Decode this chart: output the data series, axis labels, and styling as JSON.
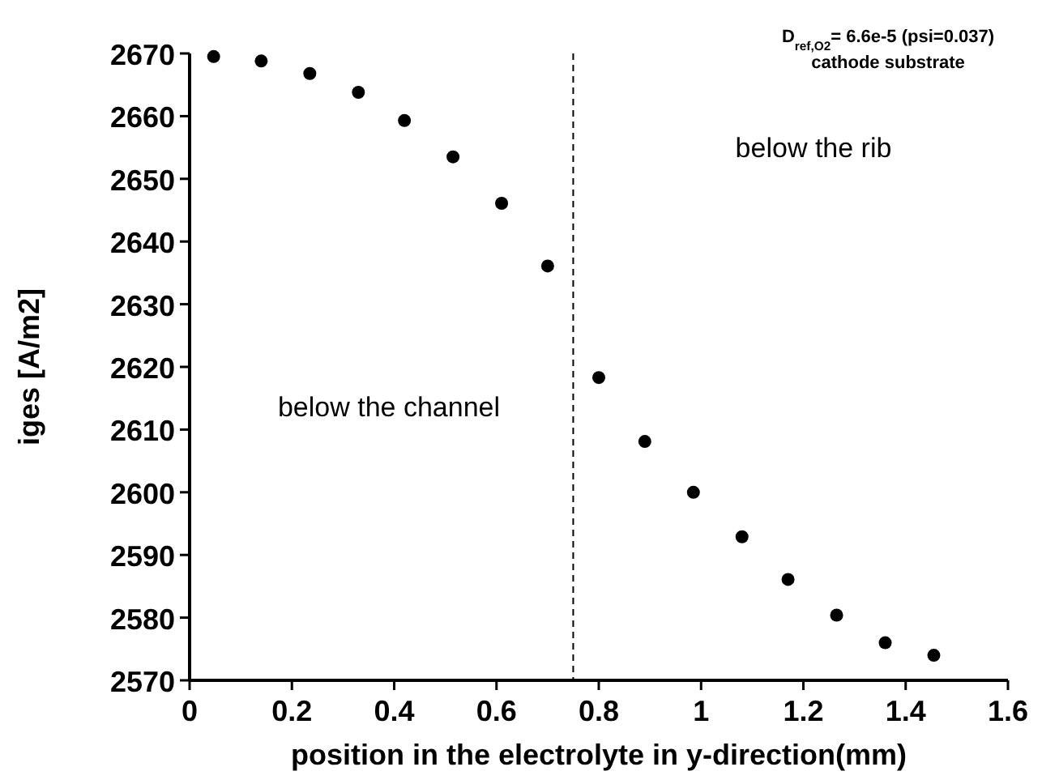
{
  "chart_data": {
    "type": "scatter",
    "xlabel": "position in the electrolyte in y-direction(mm)",
    "ylabel": "iges [A/m2]",
    "annotations": [
      "D$_{ref,O2}$= 6.6e-5 (psi=0.037)",
      "cathode substrate",
      "below the rib",
      "below the channel"
    ],
    "x": [
      0.047,
      0.14,
      0.235,
      0.33,
      0.42,
      0.515,
      0.61,
      0.7,
      0.8,
      0.89,
      0.985,
      1.08,
      1.17,
      1.265,
      1.36,
      1.455
    ],
    "series": [
      {
        "color": "#000000",
        "values": [
          2669.5,
          2668.8,
          2666.8,
          2663.8,
          2659.3,
          2653.5,
          2646.1,
          2636.1,
          2618.3,
          2608.1,
          2600,
          2592.9,
          2586.1,
          2580.4,
          2576,
          2574
        ]
      }
    ],
    "xlim": [
      0,
      1.6
    ],
    "ylim": [
      2570,
      2670
    ],
    "xticks": [
      0,
      0.2,
      0.4,
      0.6,
      0.8,
      1,
      1.2,
      1.4,
      1.6
    ],
    "yticks": [
      2570,
      2580,
      2590,
      2600,
      2610,
      2620,
      2630,
      2640,
      2650,
      2660,
      2670
    ],
    "ref_lines": [
      {
        "axis": "x",
        "value": 0.75,
        "line_style": "dashed",
        "color": "#000000"
      }
    ],
    "marker": "circle",
    "grid": false
  }
}
